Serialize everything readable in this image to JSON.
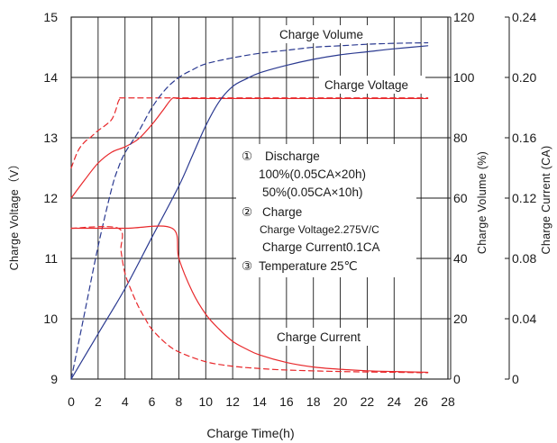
{
  "chart_data": {
    "type": "line",
    "xlabel": "Charge Time(h)",
    "ylabel_left": "Charge Voltage（V）",
    "ylabel_right1": "Charge Volume (%)",
    "ylabel_right2": "Charge Current (CA)",
    "x_ticks": [
      "0",
      "2",
      "4",
      "6",
      "8",
      "10",
      "12",
      "14",
      "16",
      "18",
      "20",
      "22",
      "24",
      "26",
      "28"
    ],
    "y_left_ticks": [
      "9",
      "10",
      "11",
      "12",
      "13",
      "14",
      "15"
    ],
    "y_right1_ticks": [
      "0",
      "20",
      "40",
      "60",
      "80",
      "100",
      "120"
    ],
    "y_right2_ticks": [
      "0",
      "0.04",
      "0.08",
      "0.12",
      "0.16",
      "0.20",
      "0.24"
    ],
    "xlim": [
      0,
      28
    ],
    "ylim_left": [
      9,
      15
    ],
    "ylim_right1": [
      0,
      120
    ],
    "ylim_right2": [
      0,
      0.24
    ],
    "grid": true,
    "annotations": {
      "charge_volume": "Charge Volume",
      "charge_voltage": "Charge Voltage",
      "charge_current": "Charge Current"
    },
    "notes": {
      "n1_marker": "①",
      "n1_title": "Discharge",
      "n1_line1": "100%(0.05CA×20h)",
      "n1_line2": "50%(0.05CA×10h)",
      "n2_marker": "②",
      "n2_title": "Charge",
      "n2_line1": "Charge Voltage2.275V/C",
      "n2_line2": "Charge Current0.1CA",
      "n3_marker": "③",
      "n3_title": "Temperature 25℃"
    },
    "series": [
      {
        "axis": "left",
        "color": "#e8282b",
        "dash": false,
        "x": [
          0,
          1,
          2,
          3,
          4,
          5,
          6,
          6.8,
          7.5,
          8,
          10,
          14,
          18,
          22,
          26.5
        ],
        "y": [
          12.0,
          12.3,
          12.58,
          12.76,
          12.85,
          12.98,
          13.22,
          13.45,
          13.65,
          13.65,
          13.65,
          13.65,
          13.65,
          13.65,
          13.65
        ]
      },
      {
        "axis": "left",
        "color": "#e8282b",
        "dash": true,
        "x": [
          0,
          0.5,
          1,
          1.5,
          2,
          2.5,
          3,
          3.3,
          3.5,
          3.7,
          4,
          8,
          14,
          20,
          26.5
        ],
        "y": [
          12.5,
          12.78,
          12.93,
          13.02,
          13.12,
          13.2,
          13.3,
          13.45,
          13.6,
          13.66,
          13.66,
          13.66,
          13.66,
          13.66,
          13.66
        ]
      },
      {
        "axis": "right1",
        "color": "#2a3990",
        "dash": false,
        "x": [
          0,
          2,
          4,
          6,
          8,
          9,
          10,
          11,
          12,
          13,
          14,
          16,
          18,
          20,
          22,
          24,
          26.5
        ],
        "y": [
          0,
          15,
          30,
          47,
          64,
          74,
          84,
          92,
          97,
          99.5,
          101.5,
          104,
          106,
          107.5,
          108.5,
          109.5,
          110.5
        ]
      },
      {
        "axis": "right1",
        "color": "#2a3990",
        "dash": true,
        "x": [
          0,
          1,
          2,
          3,
          3.5,
          4,
          5,
          6,
          7,
          8,
          9,
          10,
          12,
          14,
          16,
          18,
          20,
          22,
          24,
          26.5
        ],
        "y": [
          0,
          22,
          44,
          63,
          70,
          75,
          82,
          90,
          96,
          100,
          102.5,
          104.5,
          106.5,
          108,
          109,
          110,
          110.5,
          111,
          111.3,
          111.5
        ]
      },
      {
        "axis": "right2",
        "color": "#e8282b",
        "dash": false,
        "x": [
          0,
          4,
          7.5,
          8,
          9,
          10,
          11,
          12,
          13,
          14,
          16,
          18,
          20,
          22,
          24,
          26.5
        ],
        "y": [
          0.1,
          0.1,
          0.1,
          0.08,
          0.058,
          0.043,
          0.033,
          0.025,
          0.02,
          0.016,
          0.011,
          0.008,
          0.0065,
          0.0055,
          0.005,
          0.0045
        ]
      },
      {
        "axis": "right2",
        "color": "#e8282b",
        "dash": true,
        "x": [
          0,
          3.5,
          3.7,
          4,
          4.5,
          5,
          5.5,
          6,
          7,
          8,
          10,
          12,
          14,
          16,
          20,
          24,
          26.5
        ],
        "y": [
          0.1,
          0.1,
          0.085,
          0.07,
          0.058,
          0.048,
          0.04,
          0.033,
          0.024,
          0.018,
          0.0115,
          0.0085,
          0.007,
          0.006,
          0.005,
          0.0045,
          0.0042
        ]
      }
    ]
  }
}
